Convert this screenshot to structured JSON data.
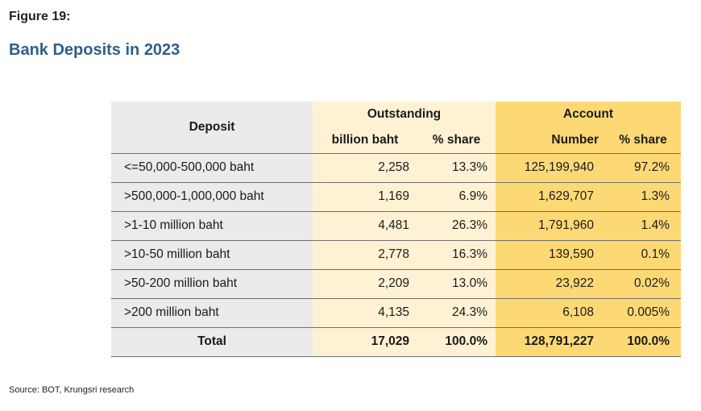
{
  "figure_label": "Figure 19:",
  "title": "Bank Deposits  in 2023",
  "source": "Source: BOT, Krungsri research",
  "table": {
    "header_deposit": "Deposit",
    "header_outstanding": "Outstanding",
    "header_account": "Account",
    "sub_outstanding_value": "billion baht",
    "sub_outstanding_share": "% share",
    "sub_account_number": "Number",
    "sub_account_share": "% share",
    "rows": [
      {
        "label": "<=50,000-500,000 baht",
        "billion": "2,258",
        "out_share": "13.3%",
        "number": "125,199,940",
        "acc_share": "97.2%"
      },
      {
        "label": ">500,000-1,000,000 baht",
        "billion": "1,169",
        "out_share": "6.9%",
        "number": "1,629,707",
        "acc_share": "1.3%"
      },
      {
        "label": ">1-10 million baht",
        "billion": "4,481",
        "out_share": "26.3%",
        "number": "1,791,960",
        "acc_share": "1.4%"
      },
      {
        "label": ">10-50 million baht",
        "billion": "2,778",
        "out_share": "16.3%",
        "number": "139,590",
        "acc_share": "0.1%"
      },
      {
        "label": ">50-200 million baht",
        "billion": "2,209",
        "out_share": "13.0%",
        "number": "23,922",
        "acc_share": "0.02%"
      },
      {
        "label": ">200 million baht",
        "billion": "4,135",
        "out_share": "24.3%",
        "number": "6,108",
        "acc_share": "0.005%"
      }
    ],
    "total": {
      "label": "Total",
      "billion": "17,029",
      "out_share": "100.0%",
      "number": "128,791,227",
      "acc_share": "100.0%"
    }
  },
  "colors": {
    "deposit_column": "#eceaea",
    "outstanding_column": "#fff2d4",
    "account_column": "#fdd975",
    "title": "#2e5f8a"
  }
}
